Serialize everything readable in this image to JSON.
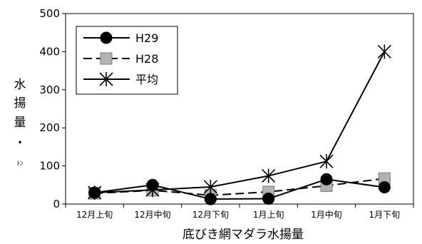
{
  "chart_data": {
    "type": "line",
    "title": "",
    "xlabel": "底びき網マダラ水揚量",
    "ylabel": [
      "水",
      "揚",
      "量",
      "・",
      "ﾄﾝ"
    ],
    "categories": [
      "12月上旬",
      "12月中旬",
      "12月下旬",
      "1月上旬",
      "1月中旬",
      "1月下旬"
    ],
    "ylim": [
      0,
      500
    ],
    "yticks": [
      "0",
      "100",
      "200",
      "300",
      "400",
      "500"
    ],
    "legend_position": "top-left",
    "series": [
      {
        "name": "H29",
        "values": [
          30,
          50,
          13,
          14,
          65,
          44
        ],
        "color": "#000000",
        "marker": "circle",
        "dash": "solid"
      },
      {
        "name": "H28",
        "values": [
          28,
          36,
          23,
          32,
          48,
          67
        ],
        "color": "#000000",
        "marker": "square",
        "dash": "dashed"
      },
      {
        "name": "平均",
        "values": [
          30,
          37,
          45,
          74,
          112,
          400
        ],
        "color": "#000000",
        "marker": "asterisk",
        "dash": "solid"
      }
    ]
  }
}
